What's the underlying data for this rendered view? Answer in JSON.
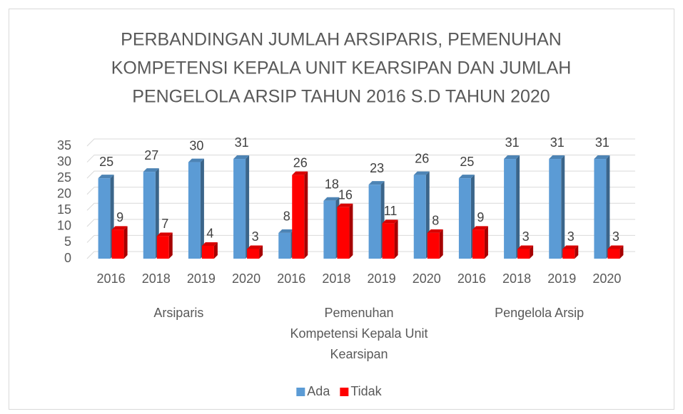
{
  "chart_data": {
    "type": "bar3d",
    "title": [
      "PERBANDINGAN JUMLAH ARSIPARIS, PEMENUHAN",
      "KOMPETENSI KEPALA UNIT KEARSIPAN DAN JUMLAH",
      "PENGELOLA ARSIP TAHUN 2016 S.D  TAHUN 2020"
    ],
    "categories": [
      "2016",
      "2018",
      "2019",
      "2020",
      "2016",
      "2018",
      "2019",
      "2020",
      "2016",
      "2018",
      "2019",
      "2020"
    ],
    "groups": [
      {
        "name": [
          "Arsiparis"
        ],
        "categories": [
          0,
          1,
          2,
          3
        ]
      },
      {
        "name": [
          "Pemenuhan",
          "Kompetensi Kepala Unit",
          "Kearsipan"
        ],
        "categories": [
          4,
          5,
          6,
          7
        ]
      },
      {
        "name": [
          "Pengelola Arsip"
        ],
        "categories": [
          8,
          9,
          10,
          11
        ]
      }
    ],
    "series": [
      {
        "name": "Ada",
        "color": "#5b9bd5",
        "values": [
          25,
          27,
          30,
          31,
          8,
          18,
          23,
          26,
          25,
          31,
          31,
          31
        ]
      },
      {
        "name": "Tidak",
        "color": "#ff0000",
        "values": [
          9,
          7,
          4,
          3,
          26,
          16,
          11,
          8,
          9,
          3,
          3,
          3
        ]
      }
    ],
    "ylim": [
      0,
      35
    ],
    "yticks": [
      0,
      5,
      10,
      15,
      20,
      25,
      30,
      35
    ],
    "grid": true,
    "legend": "bottom"
  }
}
